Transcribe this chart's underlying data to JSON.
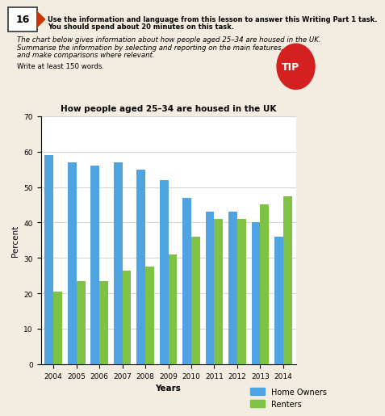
{
  "title": "How people aged 25–34 are housed in the UK",
  "xlabel": "Years",
  "ylabel": "Percent",
  "years": [
    "2004",
    "2005",
    "2006",
    "2007",
    "2008",
    "2009",
    "2010",
    "2011",
    "2012",
    "2013",
    "2014"
  ],
  "home_owners": [
    59,
    57,
    56,
    57,
    55,
    52,
    47,
    43,
    43,
    40,
    36
  ],
  "renters": [
    20.5,
    23.5,
    23.5,
    26.5,
    27.5,
    31,
    36,
    41,
    41,
    45,
    47.5
  ],
  "home_owner_color": "#4fa3e0",
  "renter_color": "#7dc242",
  "ylim": [
    0,
    70
  ],
  "yticks": [
    0,
    10,
    20,
    30,
    40,
    50,
    60,
    70
  ],
  "legend_home_owners": "Home Owners",
  "legend_renters": "Renters",
  "header_bold1": "Use the information and language from this lesson to answer this Writing Part 1 task.",
  "header_bold2": "You should spend about 20 minutes on this task.",
  "italic_line1": "The chart below gives information about how people aged 25–34 are housed in the UK.",
  "italic_line2": "Summarise the information by selecting and reporting on the main features,",
  "italic_line3": "and make comparisons where relevant.",
  "normal_line1": "Write at least 150 words.",
  "box_label": "16",
  "background_color": "#f2ede0",
  "chart_bg": "#ffffff",
  "tip_color": "#d42020"
}
